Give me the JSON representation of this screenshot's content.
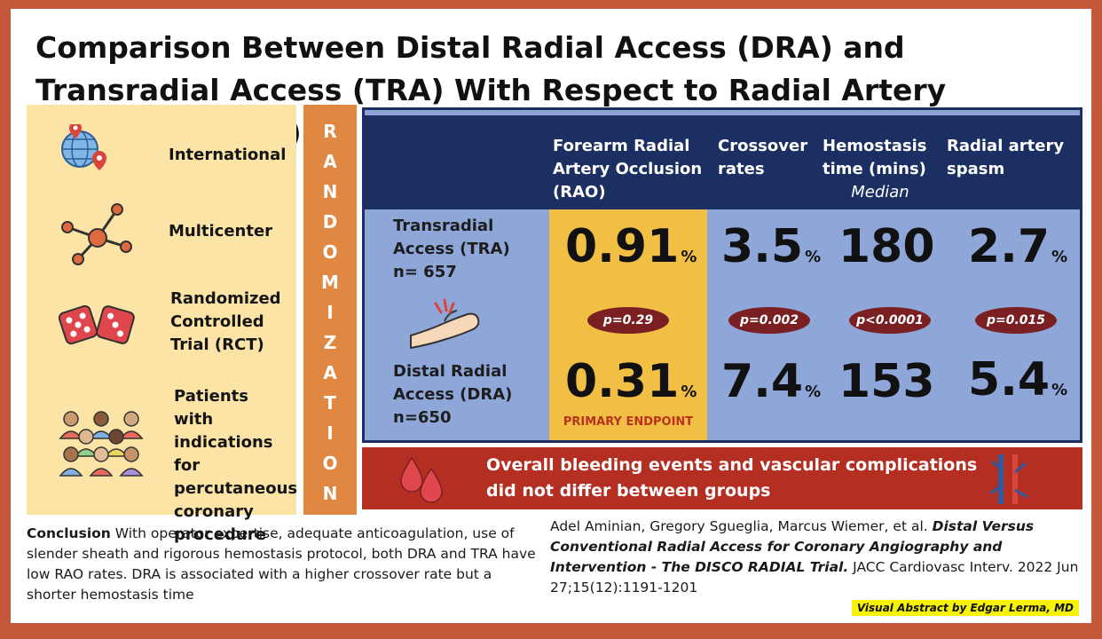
{
  "title": "Comparison Between Distal Radial Access (DRA) and Transradial Access (TRA) With Respect to Radial Artery Occlusion (RAO)",
  "features": [
    {
      "label": "International",
      "icon": "globe-pin-icon"
    },
    {
      "label": "Multicenter",
      "icon": "network-icon"
    },
    {
      "label": "Randomized Controlled Trial (RCT)",
      "icon": "dice-icon"
    },
    {
      "label": "Patients with indications for percutaneous coronary procedure",
      "icon": "people-icon"
    }
  ],
  "randomization_letters": [
    "R",
    "A",
    "N",
    "D",
    "O",
    "M",
    "I",
    "Z",
    "A",
    "T",
    "I",
    "O",
    "N"
  ],
  "table": {
    "headers": [
      {
        "label": "Forearm Radial Artery Occlusion (RAO)",
        "sub": ""
      },
      {
        "label": "Crossover rates",
        "sub": ""
      },
      {
        "label": "Hemostasis time (mins)",
        "sub": "Median"
      },
      {
        "label": "Radial artery spasm",
        "sub": ""
      }
    ],
    "rows": [
      {
        "label": "Transradial Access (TRA) n= 657",
        "values": [
          "0.91",
          "3.5",
          "180",
          "2.7"
        ],
        "units": [
          "%",
          "%",
          "",
          "%"
        ]
      },
      {
        "label": "Distal Radial Access (DRA) n=650",
        "values": [
          "0.31",
          "7.4",
          "153",
          "5.4"
        ],
        "units": [
          "%",
          "%",
          "",
          "%"
        ]
      }
    ],
    "p_values": [
      "p=0.29",
      "p=0.002",
      "p<0.0001",
      "p=0.015"
    ],
    "primary_endpoint": "PRIMARY ENDPOINT"
  },
  "bleeding_text": "Overall bleeding events and vascular complications did not differ between groups",
  "conclusion": {
    "label": "Conclusion",
    "text": " With operator expertise, adequate anticoagulation, use of slender sheath and rigorous hemostasis protocol, both DRA and TRA have low RAO rates. DRA is associated with a higher crossover rate but a shorter hemostasis time"
  },
  "citation": {
    "authors": "Adel Aminian, Gregory Sgueglia, Marcus Wiemer, et al. ",
    "title": "Distal Versus Conventional Radial Access for Coronary Angiography and Intervention - The DISCO RADIAL Trial.",
    "journal": " JACC Cardiovasc Interv. 2022 Jun 27;15(12):1191-1201"
  },
  "credit": "Visual Abstract by Edgar Lerma, MD",
  "colors": {
    "accent_orange": "#e08842",
    "navy": "#1b2f63",
    "highlight": "#f2bf45",
    "banner_red": "#b42f22"
  }
}
